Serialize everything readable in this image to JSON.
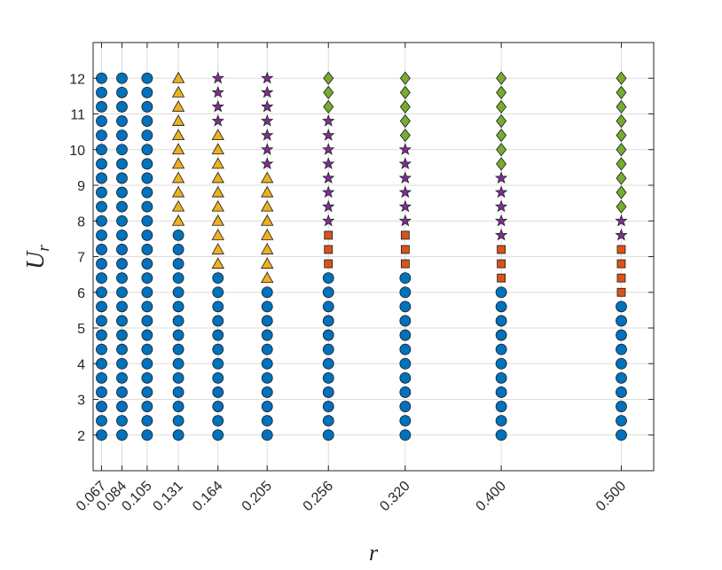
{
  "chart_data": {
    "type": "scatter",
    "xlabel": "r",
    "ylabel": "U",
    "ylabel_subscript": "r",
    "x_ticks": [
      "0.067",
      "0.084",
      "0.105",
      "0.131",
      "0.164",
      "0.205",
      "0.256",
      "0.320",
      "0.400",
      "0.500"
    ],
    "y_ticks": [
      "2",
      "3",
      "4",
      "5",
      "6",
      "7",
      "8",
      "9",
      "10",
      "11",
      "12"
    ],
    "xlim": [
      0.06,
      0.527
    ],
    "ylim": [
      1,
      13
    ],
    "grid": true,
    "marker_colors": {
      "circle": "#0072BD",
      "triangle": "#EDB120",
      "star": "#7E2F8E",
      "square": "#D95319",
      "diamond": "#77AC30"
    },
    "columns": [
      {
        "r": 0.067,
        "ranges": [
          {
            "marker": "circle",
            "from": 2.0,
            "to": 12.0
          }
        ]
      },
      {
        "r": 0.084,
        "ranges": [
          {
            "marker": "circle",
            "from": 2.0,
            "to": 12.0
          }
        ]
      },
      {
        "r": 0.105,
        "ranges": [
          {
            "marker": "circle",
            "from": 2.0,
            "to": 12.0
          }
        ]
      },
      {
        "r": 0.131,
        "ranges": [
          {
            "marker": "circle",
            "from": 2.0,
            "to": 7.6
          },
          {
            "marker": "triangle",
            "from": 8.0,
            "to": 12.0
          }
        ]
      },
      {
        "r": 0.164,
        "ranges": [
          {
            "marker": "circle",
            "from": 2.0,
            "to": 6.4
          },
          {
            "marker": "triangle",
            "from": 6.8,
            "to": 10.4
          },
          {
            "marker": "star",
            "from": 10.8,
            "to": 12.0
          }
        ]
      },
      {
        "r": 0.205,
        "ranges": [
          {
            "marker": "circle",
            "from": 2.0,
            "to": 6.0
          },
          {
            "marker": "triangle",
            "from": 6.4,
            "to": 9.2
          },
          {
            "marker": "star",
            "from": 9.6,
            "to": 12.0
          }
        ]
      },
      {
        "r": 0.256,
        "ranges": [
          {
            "marker": "circle",
            "from": 2.0,
            "to": 6.4
          },
          {
            "marker": "square",
            "from": 6.8,
            "to": 7.6
          },
          {
            "marker": "star",
            "from": 8.0,
            "to": 10.8
          },
          {
            "marker": "diamond",
            "from": 11.2,
            "to": 12.0
          }
        ]
      },
      {
        "r": 0.32,
        "ranges": [
          {
            "marker": "circle",
            "from": 2.0,
            "to": 6.4
          },
          {
            "marker": "square",
            "from": 6.8,
            "to": 7.6
          },
          {
            "marker": "star",
            "from": 8.0,
            "to": 10.0
          },
          {
            "marker": "diamond",
            "from": 10.4,
            "to": 12.0
          }
        ]
      },
      {
        "r": 0.4,
        "ranges": [
          {
            "marker": "circle",
            "from": 2.0,
            "to": 6.0
          },
          {
            "marker": "square",
            "from": 6.4,
            "to": 7.2
          },
          {
            "marker": "star",
            "from": 7.6,
            "to": 9.2
          },
          {
            "marker": "diamond",
            "from": 9.6,
            "to": 12.0
          }
        ]
      },
      {
        "r": 0.5,
        "ranges": [
          {
            "marker": "circle",
            "from": 2.0,
            "to": 5.6
          },
          {
            "marker": "square",
            "from": 6.0,
            "to": 7.2
          },
          {
            "marker": "star",
            "from": 7.6,
            "to": 8.0
          },
          {
            "marker": "diamond",
            "from": 8.4,
            "to": 12.0
          }
        ]
      }
    ],
    "y_step": 0.4
  }
}
